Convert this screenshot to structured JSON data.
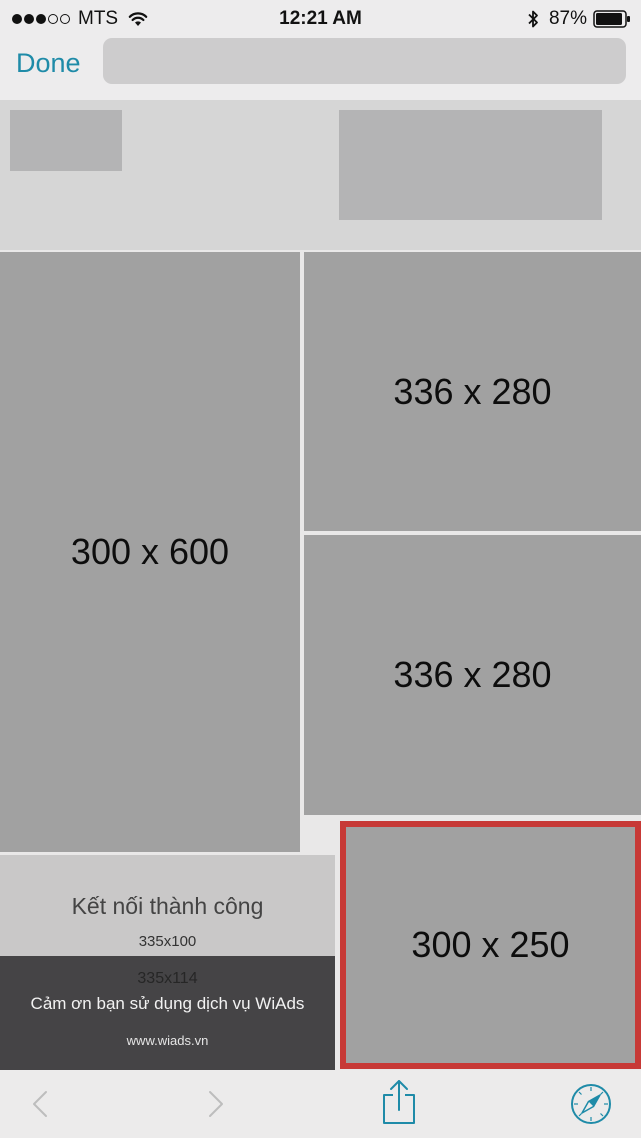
{
  "status_bar": {
    "carrier": "MTS",
    "time": "12:21 AM",
    "battery_percent": "87%",
    "signal_bars": 3,
    "signal_total": 5,
    "icons": [
      "wifi-icon",
      "bluetooth-icon",
      "battery-icon"
    ]
  },
  "nav": {
    "done_label": "Done",
    "address_value": ""
  },
  "ads": {
    "ad_300x600": "300 x 600",
    "ad_336x280_top": "336 x 280",
    "ad_336x280_bottom": "336 x 280",
    "ad_300x250": "300 x 250"
  },
  "success_banner": {
    "title": "Kết nối thành công",
    "size": "335x100"
  },
  "thanks_banner": {
    "size": "335x114",
    "message": "Cảm ơn bạn sử dụng dịch vụ WiAds",
    "url": "www.wiads.vn"
  },
  "toolbar": {
    "icons": [
      "back-icon",
      "forward-icon",
      "share-icon",
      "safari-compass-icon"
    ]
  },
  "colors": {
    "accent": "#1f8ba8",
    "selected_border": "#c73936",
    "ad_fill": "#a1a1a1",
    "dark_banner": "#454446"
  }
}
